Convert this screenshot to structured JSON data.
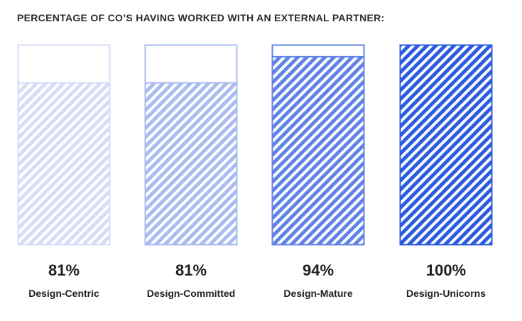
{
  "chart_data": {
    "type": "bar",
    "title": "PERCENTAGE OF CO’S HAVING WORKED WITH AN EXTERNAL PARTNER:",
    "categories": [
      "Design-Centric",
      "Design-Committed",
      "Design-Mature",
      "Design-Unicorns"
    ],
    "values": [
      81,
      81,
      94,
      100
    ],
    "value_labels": [
      "81%",
      "81%",
      "94%",
      "100%"
    ],
    "ylim": [
      0,
      100
    ],
    "grid": false,
    "legend": "none",
    "colors": [
      "#d6def7",
      "#a9bbf0",
      "#6183e6",
      "#2b5ce0"
    ]
  }
}
